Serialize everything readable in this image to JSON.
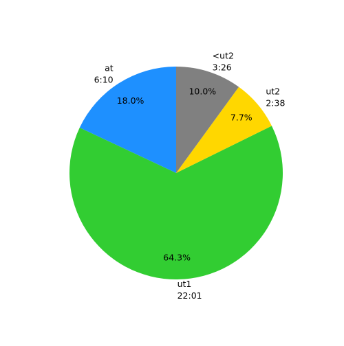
{
  "chart_data": {
    "type": "pie",
    "categories": [
      "at",
      "ut1",
      "ut2",
      "<ut2"
    ],
    "category_sublabels": [
      "6:10",
      "22:01",
      "2:38",
      "3:26"
    ],
    "values": [
      18.0,
      64.3,
      7.7,
      10.0
    ],
    "value_labels": [
      "18.0%",
      "64.3%",
      "7.7%",
      "10.0%"
    ],
    "colors": [
      "#1e90ff",
      "#32cd32",
      "#ffd700",
      "#808080"
    ],
    "startangle": 90,
    "counterclock": true
  }
}
